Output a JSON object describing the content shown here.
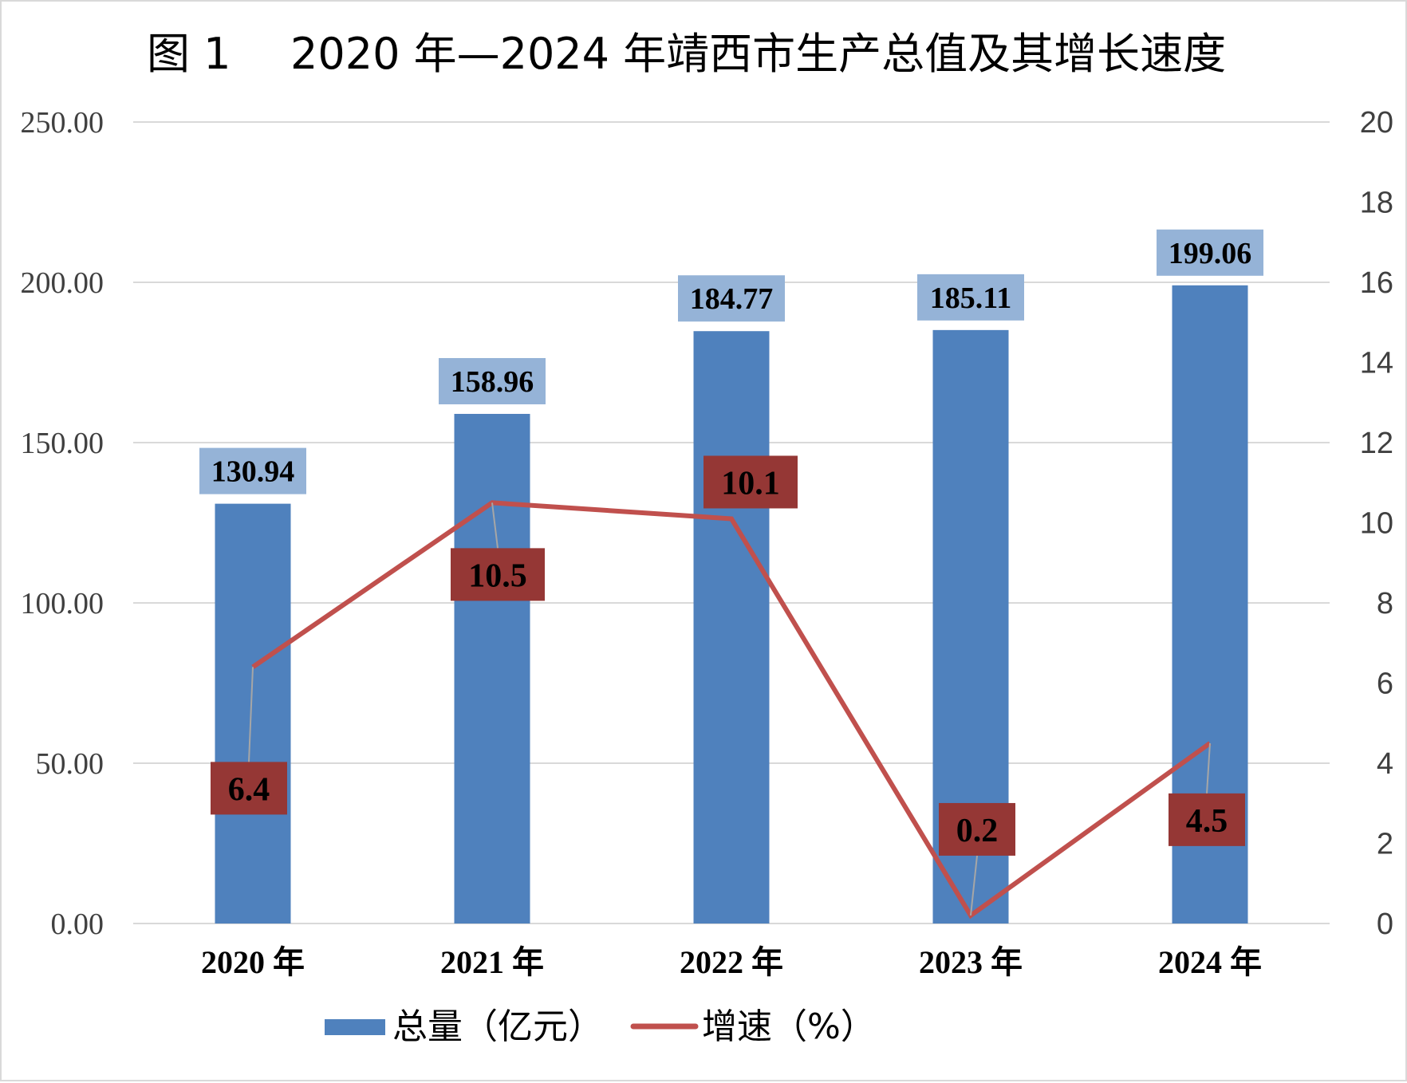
{
  "chart_data": {
    "type": "bar",
    "title_prefix": "图 1",
    "title": "2020 年—2024 年靖西市生产总值及其增长速度",
    "categories": [
      "2020 年",
      "2021 年",
      "2022 年",
      "2023 年",
      "2024 年"
    ],
    "series": [
      {
        "name": "总量（亿元）",
        "type": "bar",
        "axis": "left",
        "values": [
          130.94,
          158.96,
          184.77,
          185.11,
          199.06
        ],
        "labels": [
          "130.94",
          "158.96",
          "184.77",
          "185.11",
          "199.06"
        ]
      },
      {
        "name": "增速（%）",
        "type": "line",
        "axis": "right",
        "values": [
          6.4,
          10.5,
          10.1,
          0.2,
          4.5
        ],
        "labels": [
          "6.4",
          "10.5",
          "10.1",
          "0.2",
          "4.5"
        ]
      }
    ],
    "y_left": {
      "min": 0,
      "max": 250,
      "ticks": [
        "0.00",
        "50.00",
        "100.00",
        "150.00",
        "200.00",
        "250.00"
      ]
    },
    "y_right": {
      "min": 0,
      "max": 20,
      "ticks": [
        "0",
        "2",
        "4",
        "6",
        "8",
        "10",
        "12",
        "14",
        "16",
        "18",
        "20"
      ]
    },
    "grid": true,
    "legend": "bottom",
    "colors": {
      "bar": "#4f81bd",
      "bar_label_bg": "#95b3d7",
      "line": "#c0504d",
      "line_label_bg": "#953735",
      "grid": "#d9d9d9",
      "leader": "#a6a6a6"
    }
  }
}
